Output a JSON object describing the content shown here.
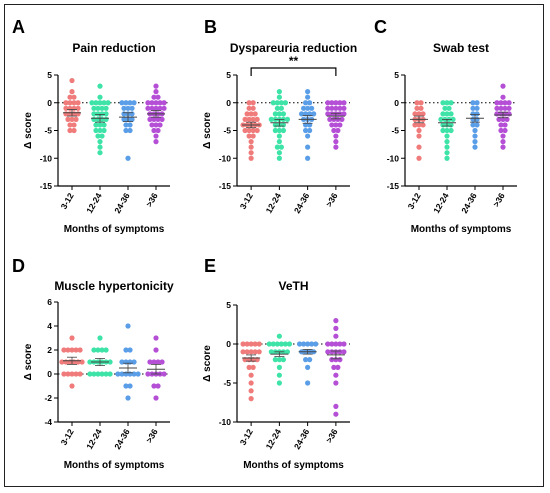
{
  "chart_data": [
    {
      "id": "A",
      "panel_label": "A",
      "type": "scatter",
      "title": "Pain reduction",
      "ylabel": "Δ score",
      "xlabel": "Months of symptoms",
      "categories": [
        "3-12",
        "12-24",
        "24-36",
        ">36"
      ],
      "ylim": [
        -15,
        5
      ],
      "yticks": [
        5,
        0,
        -5,
        -10,
        -15
      ],
      "reference_line": 0,
      "colors": [
        "#f07b7b",
        "#3ee3a8",
        "#5b9ee8",
        "#b44fd6"
      ],
      "means": [
        -1.8,
        -2.8,
        -2.6,
        -2.0
      ],
      "sems": [
        0.6,
        0.7,
        0.8,
        0.6
      ],
      "series": [
        {
          "values": [
            4,
            2,
            1,
            1,
            0,
            0,
            0,
            0,
            -1,
            -1,
            -1,
            -1,
            -2,
            -2,
            -2,
            -2,
            -3,
            -3,
            -3,
            -4,
            -4,
            -5,
            -5
          ]
        },
        {
          "values": [
            3,
            1,
            0,
            0,
            0,
            0,
            0,
            -1,
            -1,
            -1,
            -1,
            -2,
            -2,
            -2,
            -2,
            -3,
            -3,
            -3,
            -3,
            -4,
            -4,
            -4,
            -5,
            -5,
            -5,
            -6,
            -6,
            -7,
            -8,
            -9
          ]
        },
        {
          "values": [
            0,
            0,
            0,
            0,
            -1,
            -1,
            -1,
            -2,
            -2,
            -2,
            -3,
            -3,
            -3,
            -4,
            -4,
            -5,
            -5,
            -10
          ]
        },
        {
          "values": [
            3,
            2,
            1,
            1,
            0,
            0,
            0,
            0,
            0,
            -1,
            -1,
            -1,
            -1,
            -1,
            -2,
            -2,
            -2,
            -2,
            -3,
            -3,
            -3,
            -3,
            -4,
            -4,
            -4,
            -5,
            -5,
            -6,
            -7
          ]
        }
      ]
    },
    {
      "id": "B",
      "panel_label": "B",
      "type": "scatter",
      "title": "Dyspareuria reduction",
      "ylabel": "Δ score",
      "xlabel": "",
      "categories": [
        "3-12",
        "12-24",
        "24-36",
        ">36"
      ],
      "ylim": [
        -15,
        5
      ],
      "yticks": [
        5,
        0,
        -5,
        -10,
        -15
      ],
      "reference_line": 0,
      "colors": [
        "#f07b7b",
        "#3ee3a8",
        "#5b9ee8",
        "#b44fd6"
      ],
      "significance": {
        "from": 0,
        "to": 3,
        "label": "**"
      },
      "means": [
        -4.0,
        -3.6,
        -3.0,
        -2.4
      ],
      "sems": [
        0.5,
        0.6,
        0.7,
        0.5
      ],
      "series": [
        {
          "values": [
            0,
            0,
            -1,
            -1,
            -2,
            -2,
            -2,
            -3,
            -3,
            -3,
            -3,
            -4,
            -4,
            -4,
            -4,
            -4,
            -5,
            -5,
            -5,
            -5,
            -6,
            -6,
            -7,
            -8,
            -9,
            -10
          ]
        },
        {
          "values": [
            2,
            1,
            0,
            0,
            0,
            0,
            -1,
            -1,
            -2,
            -2,
            -2,
            -3,
            -3,
            -3,
            -3,
            -3,
            -4,
            -4,
            -4,
            -5,
            -5,
            -5,
            -6,
            -7,
            -8,
            -8,
            -9,
            -10
          ]
        },
        {
          "values": [
            2,
            1,
            0,
            0,
            -1,
            -1,
            -1,
            -2,
            -2,
            -2,
            -2,
            -3,
            -3,
            -3,
            -4,
            -4,
            -5,
            -5,
            -6,
            -8,
            -10
          ]
        },
        {
          "values": [
            0,
            0,
            0,
            0,
            0,
            -1,
            -1,
            -1,
            -1,
            -1,
            -2,
            -2,
            -2,
            -2,
            -2,
            -3,
            -3,
            -3,
            -3,
            -4,
            -4,
            -4,
            -5,
            -5,
            -6,
            -7,
            -8
          ]
        }
      ]
    },
    {
      "id": "C",
      "panel_label": "C",
      "type": "scatter",
      "title": "Swab test",
      "ylabel": "",
      "xlabel": "Months of symptoms",
      "categories": [
        "3-12",
        "12-24",
        "24-36",
        ">36"
      ],
      "ylim": [
        -15,
        5
      ],
      "yticks": [
        5,
        0,
        -5,
        -10,
        -15
      ],
      "reference_line": 0,
      "colors": [
        "#f07b7b",
        "#3ee3a8",
        "#5b9ee8",
        "#b44fd6"
      ],
      "means": [
        -3.0,
        -3.6,
        -2.8,
        -2.2
      ],
      "sems": [
        0.6,
        0.6,
        0.7,
        0.5
      ],
      "series": [
        {
          "values": [
            0,
            0,
            -1,
            -1,
            -2,
            -2,
            -2,
            -3,
            -3,
            -3,
            -4,
            -4,
            -4,
            -5,
            -6,
            -8,
            -10
          ]
        },
        {
          "values": [
            0,
            0,
            0,
            -1,
            -1,
            -2,
            -2,
            -2,
            -3,
            -3,
            -3,
            -3,
            -4,
            -4,
            -4,
            -5,
            -5,
            -5,
            -6,
            -7,
            -8,
            -9,
            -10
          ]
        },
        {
          "values": [
            0,
            0,
            -1,
            -1,
            -2,
            -2,
            -3,
            -3,
            -4,
            -4,
            -5,
            -6,
            -7,
            -8
          ]
        },
        {
          "values": [
            3,
            1,
            0,
            0,
            0,
            0,
            -1,
            -1,
            -1,
            -1,
            -2,
            -2,
            -2,
            -2,
            -3,
            -3,
            -3,
            -4,
            -4,
            -5,
            -5,
            -6,
            -7,
            -8
          ]
        }
      ]
    },
    {
      "id": "D",
      "panel_label": "D",
      "type": "scatter",
      "title": "Muscle hypertonicity",
      "ylabel": "Δ score",
      "xlabel": "Months of symptoms",
      "categories": [
        "3-12",
        "12-24",
        "24-36",
        ">36"
      ],
      "ylim": [
        -4,
        6
      ],
      "yticks": [
        6,
        4,
        2,
        0,
        -2,
        -4
      ],
      "reference_line": 0,
      "colors": [
        "#f07b7b",
        "#3ee3a8",
        "#5b9ee8",
        "#b44fd6"
      ],
      "means": [
        1.1,
        1.0,
        0.5,
        0.4
      ],
      "sems": [
        0.3,
        0.3,
        0.4,
        0.4
      ],
      "series": [
        {
          "values": [
            3,
            2,
            2,
            2,
            2,
            2,
            1,
            1,
            1,
            1,
            1,
            1,
            0,
            0,
            0,
            0,
            0,
            -1
          ]
        },
        {
          "values": [
            3,
            2,
            2,
            2,
            2,
            1,
            1,
            1,
            1,
            1,
            1,
            0,
            0,
            0,
            0,
            0,
            0
          ]
        },
        {
          "values": [
            4,
            2,
            2,
            1,
            1,
            1,
            1,
            0,
            0,
            0,
            0,
            0,
            0,
            -1,
            -1,
            -2
          ]
        },
        {
          "values": [
            3,
            2,
            1,
            1,
            1,
            1,
            0,
            0,
            0,
            0,
            0,
            -1,
            -1,
            -2
          ]
        }
      ]
    },
    {
      "id": "E",
      "panel_label": "E",
      "type": "scatter",
      "title": "VeTH",
      "ylabel": "Δ score",
      "xlabel": "Months of symptoms",
      "categories": [
        "3-12",
        "12-24",
        "24-36",
        ">36"
      ],
      "ylim": [
        -10,
        5
      ],
      "yticks": [
        5,
        0,
        -5,
        -10
      ],
      "reference_line": 0,
      "colors": [
        "#f07b7b",
        "#3ee3a8",
        "#5b9ee8",
        "#b44fd6"
      ],
      "means": [
        -1.8,
        -1.3,
        -1.0,
        -1.4
      ],
      "sems": [
        0.4,
        0.3,
        0.3,
        0.5
      ],
      "series": [
        {
          "values": [
            0,
            0,
            0,
            0,
            0,
            -1,
            -1,
            -1,
            -1,
            -1,
            -2,
            -2,
            -2,
            -2,
            -3,
            -3,
            -4,
            -5,
            -6,
            -7
          ]
        },
        {
          "values": [
            1,
            0,
            0,
            0,
            0,
            0,
            0,
            -1,
            -1,
            -1,
            -1,
            -1,
            -2,
            -2,
            -2,
            -3,
            -4,
            -5
          ]
        },
        {
          "values": [
            0,
            0,
            0,
            0,
            0,
            -1,
            -1,
            -1,
            -1,
            -2,
            -2,
            -3,
            -5
          ]
        },
        {
          "values": [
            3,
            2,
            1,
            0,
            0,
            0,
            0,
            0,
            -1,
            -1,
            -1,
            -1,
            -1,
            -2,
            -2,
            -2,
            -3,
            -3,
            -4,
            -5,
            -8,
            -9
          ]
        }
      ]
    }
  ]
}
